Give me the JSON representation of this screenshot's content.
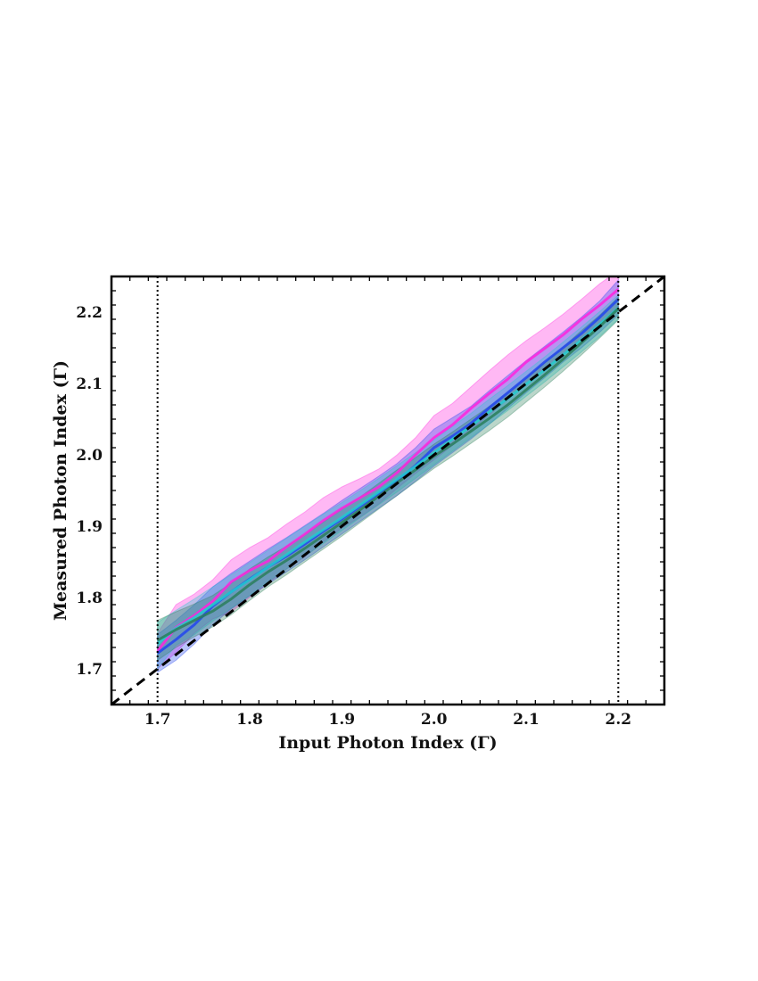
{
  "chart_data": {
    "type": "line",
    "title": "",
    "xlabel": "Input Photon Index (Γ)",
    "ylabel": "Measured Photon Index (Γ)",
    "xlim": [
      1.65,
      2.25
    ],
    "ylim": [
      1.65,
      2.25
    ],
    "x_ticks": [
      "1.7",
      "1.8",
      "1.9",
      "2.0",
      "2.1",
      "2.2"
    ],
    "y_ticks": [
      "1.7",
      "1.8",
      "1.9",
      "2.0",
      "2.1",
      "2.2"
    ],
    "grid": false,
    "legend": "none",
    "x": [
      1.7,
      1.72,
      1.74,
      1.76,
      1.78,
      1.8,
      1.82,
      1.84,
      1.86,
      1.88,
      1.9,
      1.92,
      1.94,
      1.96,
      1.98,
      2.0,
      2.02,
      2.04,
      2.06,
      2.08,
      2.1,
      2.12,
      2.14,
      2.16,
      2.18,
      2.2
    ],
    "series": [
      {
        "color": "#ff22dd",
        "values": [
          1.725,
          1.758,
          1.775,
          1.795,
          1.822,
          1.838,
          1.851,
          1.871,
          1.889,
          1.908,
          1.925,
          1.94,
          1.955,
          1.975,
          2.0,
          2.024,
          2.042,
          2.065,
          2.086,
          2.106,
          2.13,
          2.149,
          2.168,
          2.19,
          2.21,
          2.232
        ],
        "band_low": [
          1.7,
          1.723,
          1.75,
          1.77,
          1.78,
          1.8,
          1.82,
          1.84,
          1.857,
          1.878,
          1.897,
          1.913,
          1.931,
          1.953,
          1.974,
          1.993,
          2.013,
          2.035,
          2.056,
          2.078,
          2.1,
          2.12,
          2.14,
          2.163,
          2.185,
          2.208
        ],
        "band_high": [
          1.75,
          1.79,
          1.805,
          1.825,
          1.853,
          1.87,
          1.884,
          1.903,
          1.92,
          1.94,
          1.955,
          1.967,
          1.98,
          2.0,
          2.024,
          2.055,
          2.072,
          2.095,
          2.118,
          2.14,
          2.16,
          2.178,
          2.197,
          2.218,
          2.24,
          2.258
        ]
      },
      {
        "color": "#2244ee",
        "values": [
          1.722,
          1.741,
          1.762,
          1.788,
          1.808,
          1.826,
          1.843,
          1.858,
          1.875,
          1.893,
          1.91,
          1.928,
          1.946,
          1.964,
          1.985,
          2.01,
          2.026,
          2.044,
          2.066,
          2.087,
          2.108,
          2.13,
          2.15,
          2.17,
          2.193,
          2.218
        ],
        "band_low": [
          1.695,
          1.712,
          1.735,
          1.762,
          1.784,
          1.802,
          1.819,
          1.836,
          1.853,
          1.871,
          1.889,
          1.907,
          1.925,
          1.943,
          1.963,
          1.984,
          2.003,
          2.022,
          2.043,
          2.065,
          2.087,
          2.108,
          2.13,
          2.15,
          2.172,
          2.196
        ],
        "band_high": [
          1.748,
          1.768,
          1.79,
          1.815,
          1.834,
          1.851,
          1.868,
          1.884,
          1.901,
          1.918,
          1.936,
          1.953,
          1.97,
          1.988,
          2.01,
          2.036,
          2.052,
          2.068,
          2.09,
          2.111,
          2.132,
          2.152,
          2.172,
          2.193,
          2.216,
          2.245
        ]
      },
      {
        "color": "#22cccc",
        "values": [
          1.735,
          1.757,
          1.772,
          1.79,
          1.808,
          1.825,
          1.843,
          1.86,
          1.878,
          1.895,
          1.912,
          1.93,
          1.948,
          1.966,
          1.984,
          2.003,
          2.022,
          2.04,
          2.06,
          2.079,
          2.099,
          2.119,
          2.14,
          2.161,
          2.183,
          2.206
        ],
        "band_low": [
          1.7,
          1.733,
          1.748,
          1.767,
          1.785,
          1.803,
          1.822,
          1.84,
          1.858,
          1.876,
          1.894,
          1.912,
          1.93,
          1.948,
          1.967,
          1.986,
          2.005,
          2.024,
          2.043,
          2.062,
          2.082,
          2.102,
          2.123,
          2.144,
          2.166,
          2.19
        ],
        "band_high": [
          1.765,
          1.782,
          1.798,
          1.815,
          1.832,
          1.849,
          1.866,
          1.883,
          1.9,
          1.917,
          1.933,
          1.95,
          1.967,
          1.985,
          2.003,
          2.021,
          2.04,
          2.058,
          2.078,
          2.097,
          2.117,
          2.137,
          2.158,
          2.179,
          2.201,
          2.224
        ]
      },
      {
        "color": "#2a7e5a",
        "values": [
          1.74,
          1.755,
          1.768,
          1.781,
          1.798,
          1.818,
          1.836,
          1.852,
          1.869,
          1.887,
          1.905,
          1.923,
          1.942,
          1.961,
          1.979,
          1.998,
          2.015,
          2.033,
          2.051,
          2.07,
          2.091,
          2.112,
          2.134,
          2.157,
          2.18,
          2.205
        ],
        "band_low": [
          1.712,
          1.73,
          1.745,
          1.759,
          1.776,
          1.796,
          1.815,
          1.832,
          1.85,
          1.868,
          1.886,
          1.905,
          1.924,
          1.943,
          1.962,
          1.981,
          1.998,
          2.016,
          2.034,
          2.053,
          2.074,
          2.095,
          2.117,
          2.14,
          2.164,
          2.189
        ],
        "band_high": [
          1.768,
          1.78,
          1.791,
          1.803,
          1.82,
          1.84,
          1.857,
          1.872,
          1.888,
          1.906,
          1.924,
          1.941,
          1.96,
          1.979,
          1.996,
          2.015,
          2.032,
          2.05,
          2.068,
          2.087,
          2.108,
          2.129,
          2.151,
          2.174,
          2.196,
          2.221
        ]
      }
    ],
    "reference_line": {
      "style": "dashed",
      "color": "#000000",
      "x": [
        1.65,
        2.25
      ],
      "y": [
        1.65,
        2.25
      ]
    },
    "vertical_lines": {
      "style": "dotted",
      "color": "#000000",
      "x": [
        1.7,
        2.2
      ]
    }
  }
}
